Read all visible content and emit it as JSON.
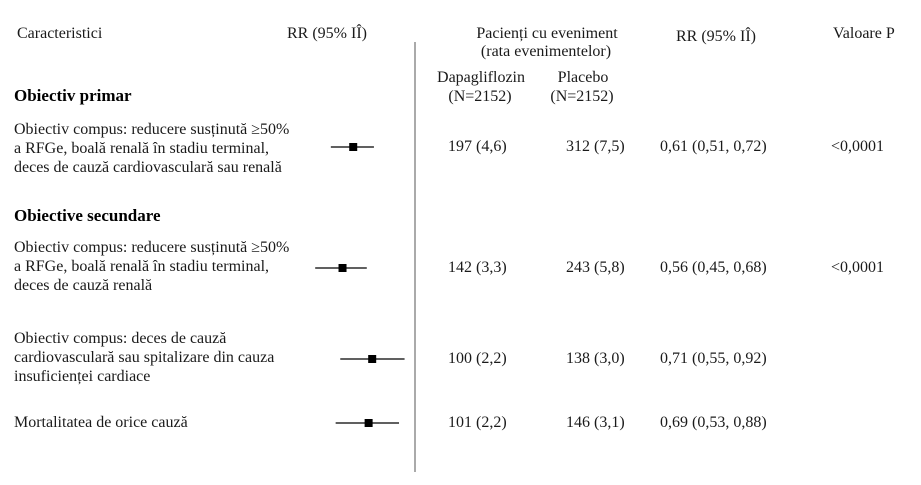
{
  "table": {
    "headers": {
      "characteristics": "Caracteristici",
      "patients_line1": "Pacienți cu eveniment",
      "patients_line2": "(rata evenimentelor)",
      "rr": "RR (95% IÎ)",
      "p_value": "Valoare P",
      "arm1_name": "Dapagliflozin",
      "arm1_n": "(N=2152)",
      "arm2_name": "Placebo",
      "arm2_n": "(N=2152)"
    },
    "sections": [
      "Obiectiv primar",
      "Obiective secundare"
    ],
    "rows": [
      {
        "label": [
          "Obiectiv compus: reducere susținută ≥50%",
          "a RFGe, boală renală în stadiu terminal,",
          "deces de cauză cardiovasculară sau renală"
        ],
        "dapagliflozin": "197 (4,6)",
        "placebo": "312 (7,5)",
        "rr": "0,61 (0,51, 0,72)",
        "p": "<0,0001"
      },
      {
        "label": [
          "Obiectiv compus: reducere susținută ≥50%",
          "a RFGe, boală renală în stadiu terminal,",
          "deces de cauză renală"
        ],
        "dapagliflozin": "142 (3,3)",
        "placebo": "243 (5,8)",
        "rr": "0,56 (0,45, 0,68)",
        "p": "<0,0001"
      },
      {
        "label": [
          "Obiectiv compus: deces de cauză",
          "cardiovasculară sau spitalizare din cauza",
          "insuficienței cardiace"
        ],
        "dapagliflozin": "100 (2,2)",
        "placebo": "138 (3,0)",
        "rr": "0,71 (0,55, 0,92)"
      },
      {
        "label": [
          "Mortalitatea de orice cauză"
        ],
        "dapagliflozin": "101 (2,2)",
        "placebo": "146 (3,1)",
        "rr": "0,69 (0,53, 0,88)"
      }
    ]
  },
  "chart_data": {
    "type": "scatter",
    "xlabel": "RR (95% IÎ)",
    "xscale": "log",
    "reference_x": 1,
    "error_bars": true,
    "grid": false,
    "points": [
      {
        "rr": 0.61,
        "ci": [
          0.51,
          0.72
        ]
      },
      {
        "rr": 0.56,
        "ci": [
          0.45,
          0.68
        ]
      },
      {
        "rr": 0.71,
        "ci": [
          0.55,
          0.92
        ]
      },
      {
        "rr": 0.69,
        "ci": [
          0.53,
          0.88
        ]
      }
    ],
    "colors": {
      "marker": "#000000",
      "reference_line": "#555555"
    }
  }
}
